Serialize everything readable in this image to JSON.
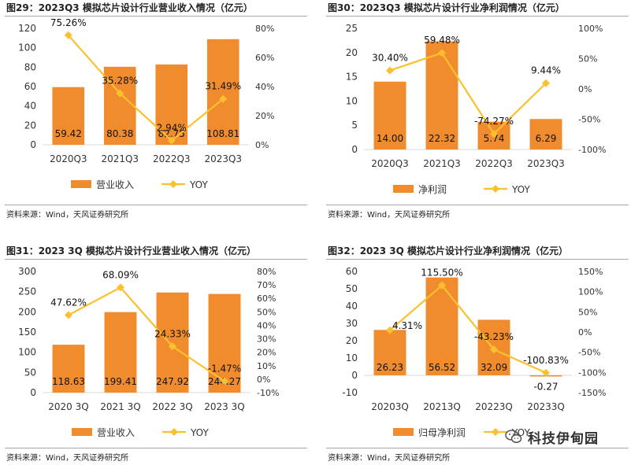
{
  "chart_data": [
    {
      "id": "fig29",
      "type": "bar",
      "title": "图29：2023Q3 模拟芯片设计行业营业收入情况（亿元）",
      "categories": [
        "2020Q3",
        "2021Q3",
        "2022Q3",
        "2023Q3"
      ],
      "series": [
        {
          "name": "营业收入",
          "kind": "bar",
          "axis": "left",
          "values": [
            59.42,
            80.38,
            82.75,
            108.81
          ],
          "labels": [
            "59.42",
            "80.38",
            "82.75",
            "108.81"
          ]
        },
        {
          "name": "YOY",
          "kind": "line",
          "axis": "right",
          "values": [
            75.26,
            35.28,
            2.94,
            31.49
          ],
          "labels": [
            "75.26%",
            "35.28%",
            "2.94%",
            "31.49%"
          ]
        }
      ],
      "ylim": [
        0,
        120
      ],
      "y_ticks": [
        "0",
        "20",
        "40",
        "60",
        "80",
        "100",
        "120"
      ],
      "y2lim": [
        0,
        80
      ],
      "y2_ticks": [
        "0%",
        "20%",
        "40%",
        "60%",
        "80%"
      ],
      "source": "资料来源：Wind，天风证券研究所"
    },
    {
      "id": "fig30",
      "type": "bar",
      "title": "图30：2023Q3 模拟芯片设计行业净利润情况（亿元）",
      "categories": [
        "2020Q3",
        "2021Q3",
        "2022Q3",
        "2023Q3"
      ],
      "series": [
        {
          "name": "净利润",
          "kind": "bar",
          "axis": "left",
          "values": [
            14.0,
            22.32,
            5.74,
            6.29
          ],
          "labels": [
            "14.00",
            "22.32",
            "5.74",
            "6.29"
          ]
        },
        {
          "name": "YOY",
          "kind": "line",
          "axis": "right",
          "values": [
            30.4,
            59.48,
            -74.27,
            9.44
          ],
          "labels": [
            "30.40%",
            "59.48%",
            "-74.27%",
            "9.44%"
          ]
        }
      ],
      "ylim": [
        0,
        25
      ],
      "y_ticks": [
        "0",
        "5",
        "10",
        "15",
        "20",
        "25"
      ],
      "y2lim": [
        -100,
        100
      ],
      "y2_ticks": [
        "-100%",
        "-50%",
        "0%",
        "50%",
        "100%"
      ],
      "source": "资料来源：Wind，天风证券研究所"
    },
    {
      "id": "fig31",
      "type": "bar",
      "title": "图31：2023 3Q 模拟芯片设计行业营业收入情况（亿元）",
      "categories": [
        "2020 3Q",
        "2021 3Q",
        "2022 3Q",
        "2023 3Q"
      ],
      "series": [
        {
          "name": "营业收入",
          "kind": "bar",
          "axis": "left",
          "values": [
            118.63,
            199.41,
            247.92,
            244.27
          ],
          "labels": [
            "118.63",
            "199.41",
            "247.92",
            "244.27"
          ]
        },
        {
          "name": "YOY",
          "kind": "line",
          "axis": "right",
          "values": [
            47.62,
            68.09,
            24.33,
            -1.47
          ],
          "labels": [
            "47.62%",
            "68.09%",
            "24.33%",
            "-1.47%"
          ]
        }
      ],
      "ylim": [
        0,
        300
      ],
      "y_ticks": [
        "0",
        "50",
        "100",
        "150",
        "200",
        "250",
        "300"
      ],
      "y2lim": [
        -10,
        80
      ],
      "y2_ticks": [
        "-10%",
        "0%",
        "10%",
        "20%",
        "30%",
        "40%",
        "50%",
        "60%",
        "70%",
        "80%"
      ],
      "source": "资料来源：Wind，天风证券研究所"
    },
    {
      "id": "fig32",
      "type": "bar",
      "title": "图32：2023 3Q 模拟芯片设计行业净利润情况（亿元）",
      "categories": [
        "20203Q",
        "20213Q",
        "20223Q",
        "20233Q"
      ],
      "series": [
        {
          "name": "归母净利润",
          "kind": "bar",
          "axis": "left",
          "values": [
            26.23,
            56.52,
            32.09,
            -0.27
          ],
          "labels": [
            "26.23",
            "56.52",
            "32.09",
            "-0.27"
          ]
        },
        {
          "name": "YOY",
          "kind": "line",
          "axis": "right",
          "values": [
            4.31,
            115.5,
            -43.23,
            -100.83
          ],
          "labels": [
            "4.31%",
            "115.50%",
            "-43.23%",
            "-100.83%"
          ]
        }
      ],
      "ylim": [
        -10,
        60
      ],
      "y_ticks": [
        "-10",
        "0",
        "10",
        "20",
        "30",
        "40",
        "50",
        "60"
      ],
      "y2lim": [
        -150,
        150
      ],
      "y2_ticks": [
        "-150%",
        "-100%",
        "-50%",
        "0%",
        "50%",
        "100%",
        "150%"
      ],
      "source": "资料来源：Wind，天风证券研究所"
    }
  ],
  "colors": {
    "bar": "#f08c2e",
    "line": "#fbc02d",
    "text": "#222222",
    "axis": "#d9d9d9"
  },
  "watermark": {
    "text": "科技伊甸园",
    "icon": "wechat-icon"
  }
}
